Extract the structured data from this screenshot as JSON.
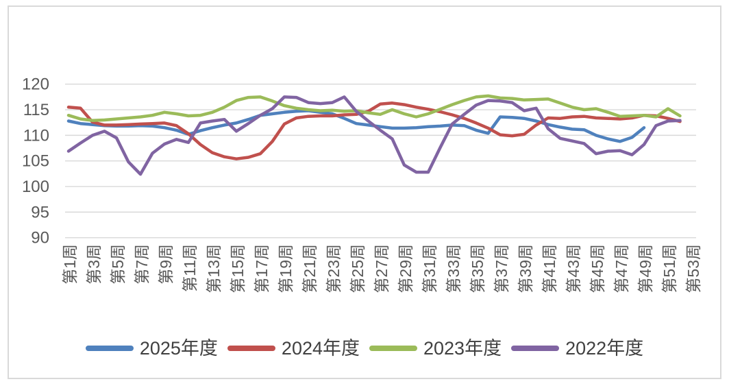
{
  "chart": {
    "frame_border_color": "#D9D9D9",
    "background_color": "#FFFFFF",
    "gridline_color": "#D9D9D9",
    "axis_label_color": "#595959",
    "legend_text_color": "#404040"
  },
  "chart_data": {
    "type": "line",
    "title": "",
    "categories": [
      "第1周",
      "第2周",
      "第3周",
      "第4周",
      "第5周",
      "第6周",
      "第7周",
      "第8周",
      "第9周",
      "第10周",
      "第11周",
      "第12周",
      "第13周",
      "第14周",
      "第15周",
      "第16周",
      "第17周",
      "第18周",
      "第19周",
      "第20周",
      "第21周",
      "第22周",
      "第23周",
      "第24周",
      "第25周",
      "第26周",
      "第27周",
      "第28周",
      "第29周",
      "第30周",
      "第31周",
      "第32周",
      "第33周",
      "第34周",
      "第35周",
      "第36周",
      "第37周",
      "第38周",
      "第39周",
      "第40周",
      "第41周",
      "第42周",
      "第43周",
      "第44周",
      "第45周",
      "第46周",
      "第47周",
      "第48周",
      "第49周",
      "第50周",
      "第51周",
      "第52周",
      "第53周"
    ],
    "x_tick_interval": 2,
    "x_tick_labels_shown": [
      "第1周",
      "第3周",
      "第5周",
      "第7周",
      "第9周",
      "第11周",
      "第13周",
      "第15周",
      "第17周",
      "第19周",
      "第21周",
      "第23周",
      "第25周",
      "第27周",
      "第29周",
      "第31周",
      "第33周",
      "第35周",
      "第37周",
      "第39周",
      "第41周",
      "第43周",
      "第45周",
      "第47周",
      "第49周",
      "第51周",
      "第53周"
    ],
    "x_labels_rotation_degrees": -90,
    "y_axis": {
      "min": 90,
      "max": 120,
      "tick_step": 5,
      "ticks": [
        90,
        95,
        100,
        105,
        110,
        115,
        120
      ]
    },
    "grid": true,
    "legend_position": "bottom",
    "series": [
      {
        "name": "2025年度",
        "color": "#4F81BD",
        "values": [
          112.8,
          112.3,
          112.1,
          111.9,
          111.8,
          111.8,
          111.9,
          111.8,
          111.5,
          111.0,
          110.2,
          110.9,
          111.5,
          112.0,
          112.4,
          113.1,
          113.9,
          114.2,
          114.5,
          114.7,
          114.8,
          114.5,
          114.2,
          113.3,
          112.3,
          112.0,
          111.7,
          111.4,
          111.4,
          111.5,
          111.7,
          111.8,
          112.0,
          111.9,
          111.0,
          110.4,
          113.6,
          113.5,
          113.3,
          112.8,
          112.1,
          111.6,
          111.2,
          111.1,
          110.0,
          109.3,
          108.8,
          109.6,
          111.5
        ]
      },
      {
        "name": "2024年度",
        "color": "#C0504D",
        "values": [
          115.5,
          115.3,
          112.6,
          112.0,
          112.0,
          112.1,
          112.2,
          112.3,
          112.4,
          111.9,
          110.3,
          108.2,
          106.6,
          105.8,
          105.4,
          105.7,
          106.4,
          108.8,
          112.2,
          113.4,
          113.7,
          113.8,
          113.8,
          114.0,
          114.1,
          114.7,
          116.1,
          116.3,
          116.0,
          115.5,
          115.1,
          114.6,
          114.0,
          113.3,
          112.4,
          111.4,
          110.1,
          109.9,
          110.2,
          112.0,
          113.4,
          113.3,
          113.6,
          113.7,
          113.4,
          113.3,
          113.2,
          113.4,
          113.9,
          113.8,
          113.3,
          112.7
        ]
      },
      {
        "name": "2023年度",
        "color": "#9BBB59",
        "values": [
          113.9,
          113.2,
          112.9,
          113.0,
          113.2,
          113.4,
          113.6,
          113.9,
          114.5,
          114.2,
          113.8,
          113.9,
          114.5,
          115.5,
          116.8,
          117.4,
          117.5,
          116.7,
          115.8,
          115.3,
          115.0,
          114.8,
          114.9,
          114.7,
          114.8,
          114.4,
          114.1,
          115.0,
          114.2,
          113.6,
          114.2,
          115.1,
          116.0,
          116.8,
          117.5,
          117.7,
          117.3,
          117.2,
          116.9,
          117.0,
          117.1,
          116.3,
          115.5,
          115.0,
          115.2,
          114.5,
          113.7,
          113.8,
          113.9,
          113.6,
          115.2,
          113.8
        ]
      },
      {
        "name": "2022年度",
        "color": "#8064A2",
        "values": [
          106.9,
          108.5,
          110.0,
          110.8,
          109.5,
          104.8,
          102.4,
          106.5,
          108.3,
          109.2,
          108.6,
          112.4,
          112.8,
          113.1,
          110.8,
          112.3,
          113.9,
          115.2,
          117.5,
          117.4,
          116.4,
          116.2,
          116.4,
          117.5,
          114.7,
          112.8,
          111.0,
          109.3,
          104.2,
          102.8,
          102.8,
          107.6,
          112.2,
          114.1,
          115.9,
          116.8,
          116.7,
          116.4,
          114.8,
          115.3,
          111.3,
          109.4,
          108.9,
          108.4,
          106.4,
          106.9,
          107.0,
          106.2,
          108.2,
          111.9,
          112.8,
          112.9
        ]
      }
    ]
  }
}
